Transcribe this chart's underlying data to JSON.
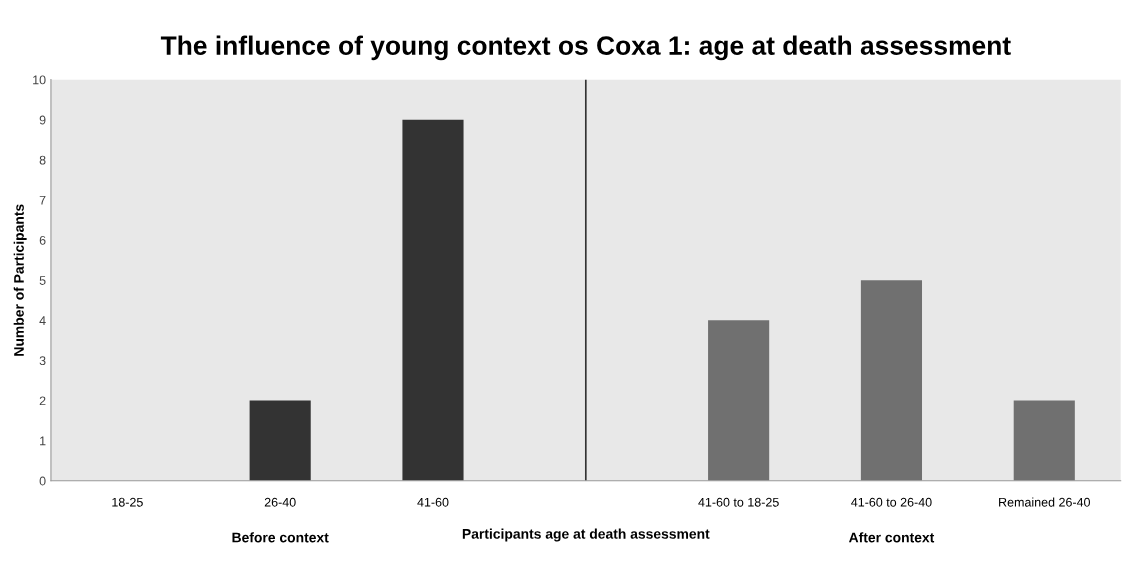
{
  "chart_data": {
    "type": "bar",
    "title": "The influence of young context os Coxa 1: age at death assessment",
    "xlabel": "Participants age at death assessment",
    "ylabel": "Number of Participants",
    "categories": [
      "18-25",
      "26-40",
      "41-60",
      null,
      "41-60 to 18-25",
      "41-60 to 26-40",
      "Remained 26-40"
    ],
    "values": [
      0,
      2,
      9,
      null,
      4,
      5,
      2
    ],
    "colors": [
      "#333333",
      "#333333",
      "#333333",
      "#333333",
      "#707070",
      "#707070",
      "#707070"
    ],
    "ylim": [
      0,
      10
    ],
    "yticks": [
      0,
      1,
      2,
      3,
      4,
      5,
      6,
      7,
      8,
      9,
      10
    ],
    "annotations": [
      "Before context",
      "After context"
    ]
  }
}
